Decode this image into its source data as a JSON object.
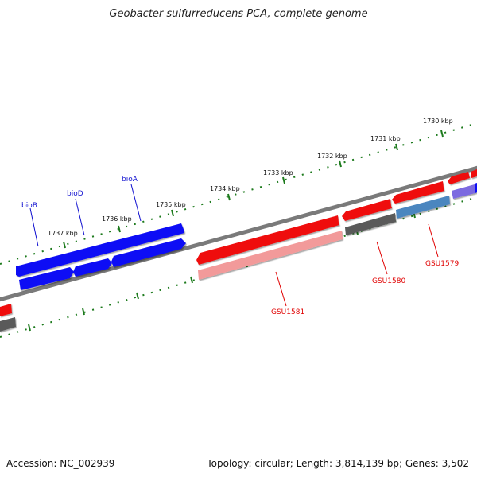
{
  "title": "Geobacter sulfurreducens PCA, complete genome",
  "footer": {
    "accession": "Accession: NC_002939",
    "summary": "Topology: circular; Length: 3,814,139 bp; Genes: 3,502"
  },
  "colors": {
    "backbone": "#7a7a7a",
    "tick": "#1c7a1c",
    "blue_gene": "#0b0bf5",
    "red_gene": "#ef1111",
    "pink_gene": "#f29a9a",
    "gray_gene": "#5a5a5a",
    "steel_gene": "#4c86bf",
    "purple_gene": "#7b6be0",
    "blue_label": "#1010d0",
    "red_label": "#e00000"
  },
  "ticks": [
    {
      "label": "1730 kbp"
    },
    {
      "label": "1731 kbp"
    },
    {
      "label": "1732 kbp"
    },
    {
      "label": "1733 kbp"
    },
    {
      "label": "1734 kbp"
    },
    {
      "label": "1735 kbp"
    },
    {
      "label": "1736 kbp"
    },
    {
      "label": "1737 kbp"
    }
  ],
  "genes": [
    {
      "label": "bioB"
    },
    {
      "label": "bioD"
    },
    {
      "label": "bioA"
    },
    {
      "label": "GSU1581"
    },
    {
      "label": "GSU1580"
    },
    {
      "label": "GSU1579"
    }
  ]
}
